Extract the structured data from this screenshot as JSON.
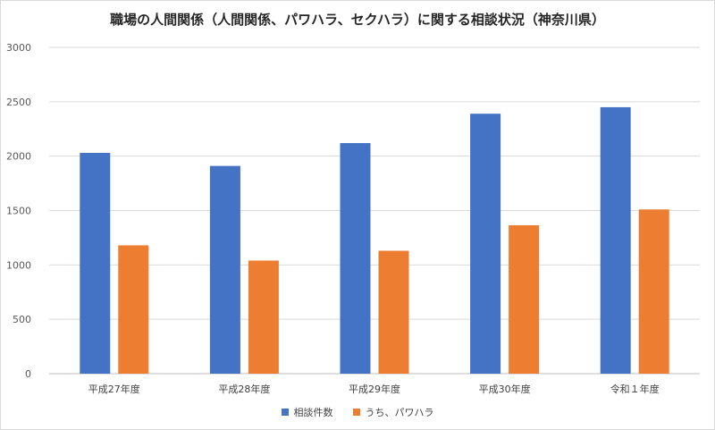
{
  "chart_data": {
    "type": "bar",
    "title": "職場の人間関係（人間関係、パワハラ、セクハラ）に関する相談状況（神奈川県）",
    "categories": [
      "平成27年度",
      "平成28年度",
      "平成29年度",
      "平成30年度",
      "令和１年度"
    ],
    "series": [
      {
        "name": "相談件数",
        "color": "#4472c4",
        "values": [
          2030,
          1910,
          2120,
          2390,
          2450
        ]
      },
      {
        "name": "うち、パワハラ",
        "color": "#ed7d31",
        "values": [
          1180,
          1040,
          1130,
          1365,
          1510
        ]
      }
    ],
    "ylim": [
      0,
      3000
    ],
    "yticks": [
      0,
      500,
      1000,
      1500,
      2000,
      2500,
      3000
    ],
    "grid": true,
    "legend_position": "bottom",
    "xlabel": "",
    "ylabel": ""
  }
}
